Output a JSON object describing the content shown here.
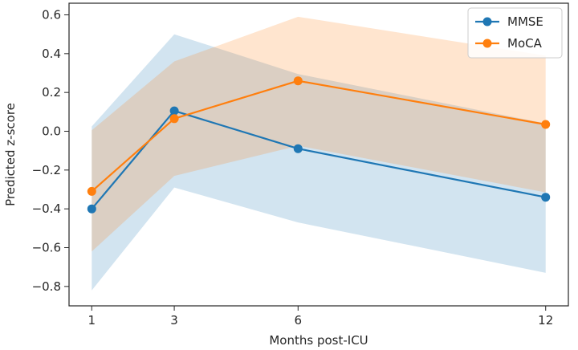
{
  "chart_data": {
    "type": "line",
    "title": "",
    "xlabel": "Months post-ICU",
    "ylabel": "Predicted z-score",
    "x": [
      1,
      3,
      6,
      12
    ],
    "x_tick_labels": [
      "1",
      "3",
      "6",
      "12"
    ],
    "xlim": [
      0.45,
      12.55
    ],
    "ylim": [
      -0.9,
      0.66
    ],
    "y_ticks": [
      -0.8,
      -0.6,
      -0.4,
      -0.2,
      0.0,
      0.2,
      0.4,
      0.6
    ],
    "y_tick_labels": [
      "−0.8",
      "−0.6",
      "−0.4",
      "−0.2",
      "0.0",
      "0.2",
      "0.4",
      "0.6"
    ],
    "grid": false,
    "legend_position": "top-right",
    "series": [
      {
        "name": "MMSE",
        "color": "#1f77b4",
        "values": [
          -0.4,
          0.105,
          -0.09,
          -0.34
        ],
        "ci_lower": [
          -0.82,
          -0.29,
          -0.47,
          -0.73
        ],
        "ci_upper": [
          0.025,
          0.5,
          0.295,
          0.04
        ]
      },
      {
        "name": "MoCA",
        "color": "#ff7f0e",
        "values": [
          -0.31,
          0.065,
          0.26,
          0.035
        ],
        "ci_lower": [
          -0.62,
          -0.23,
          -0.075,
          -0.315
        ],
        "ci_upper": [
          0.005,
          0.36,
          0.59,
          0.39
        ]
      }
    ]
  }
}
